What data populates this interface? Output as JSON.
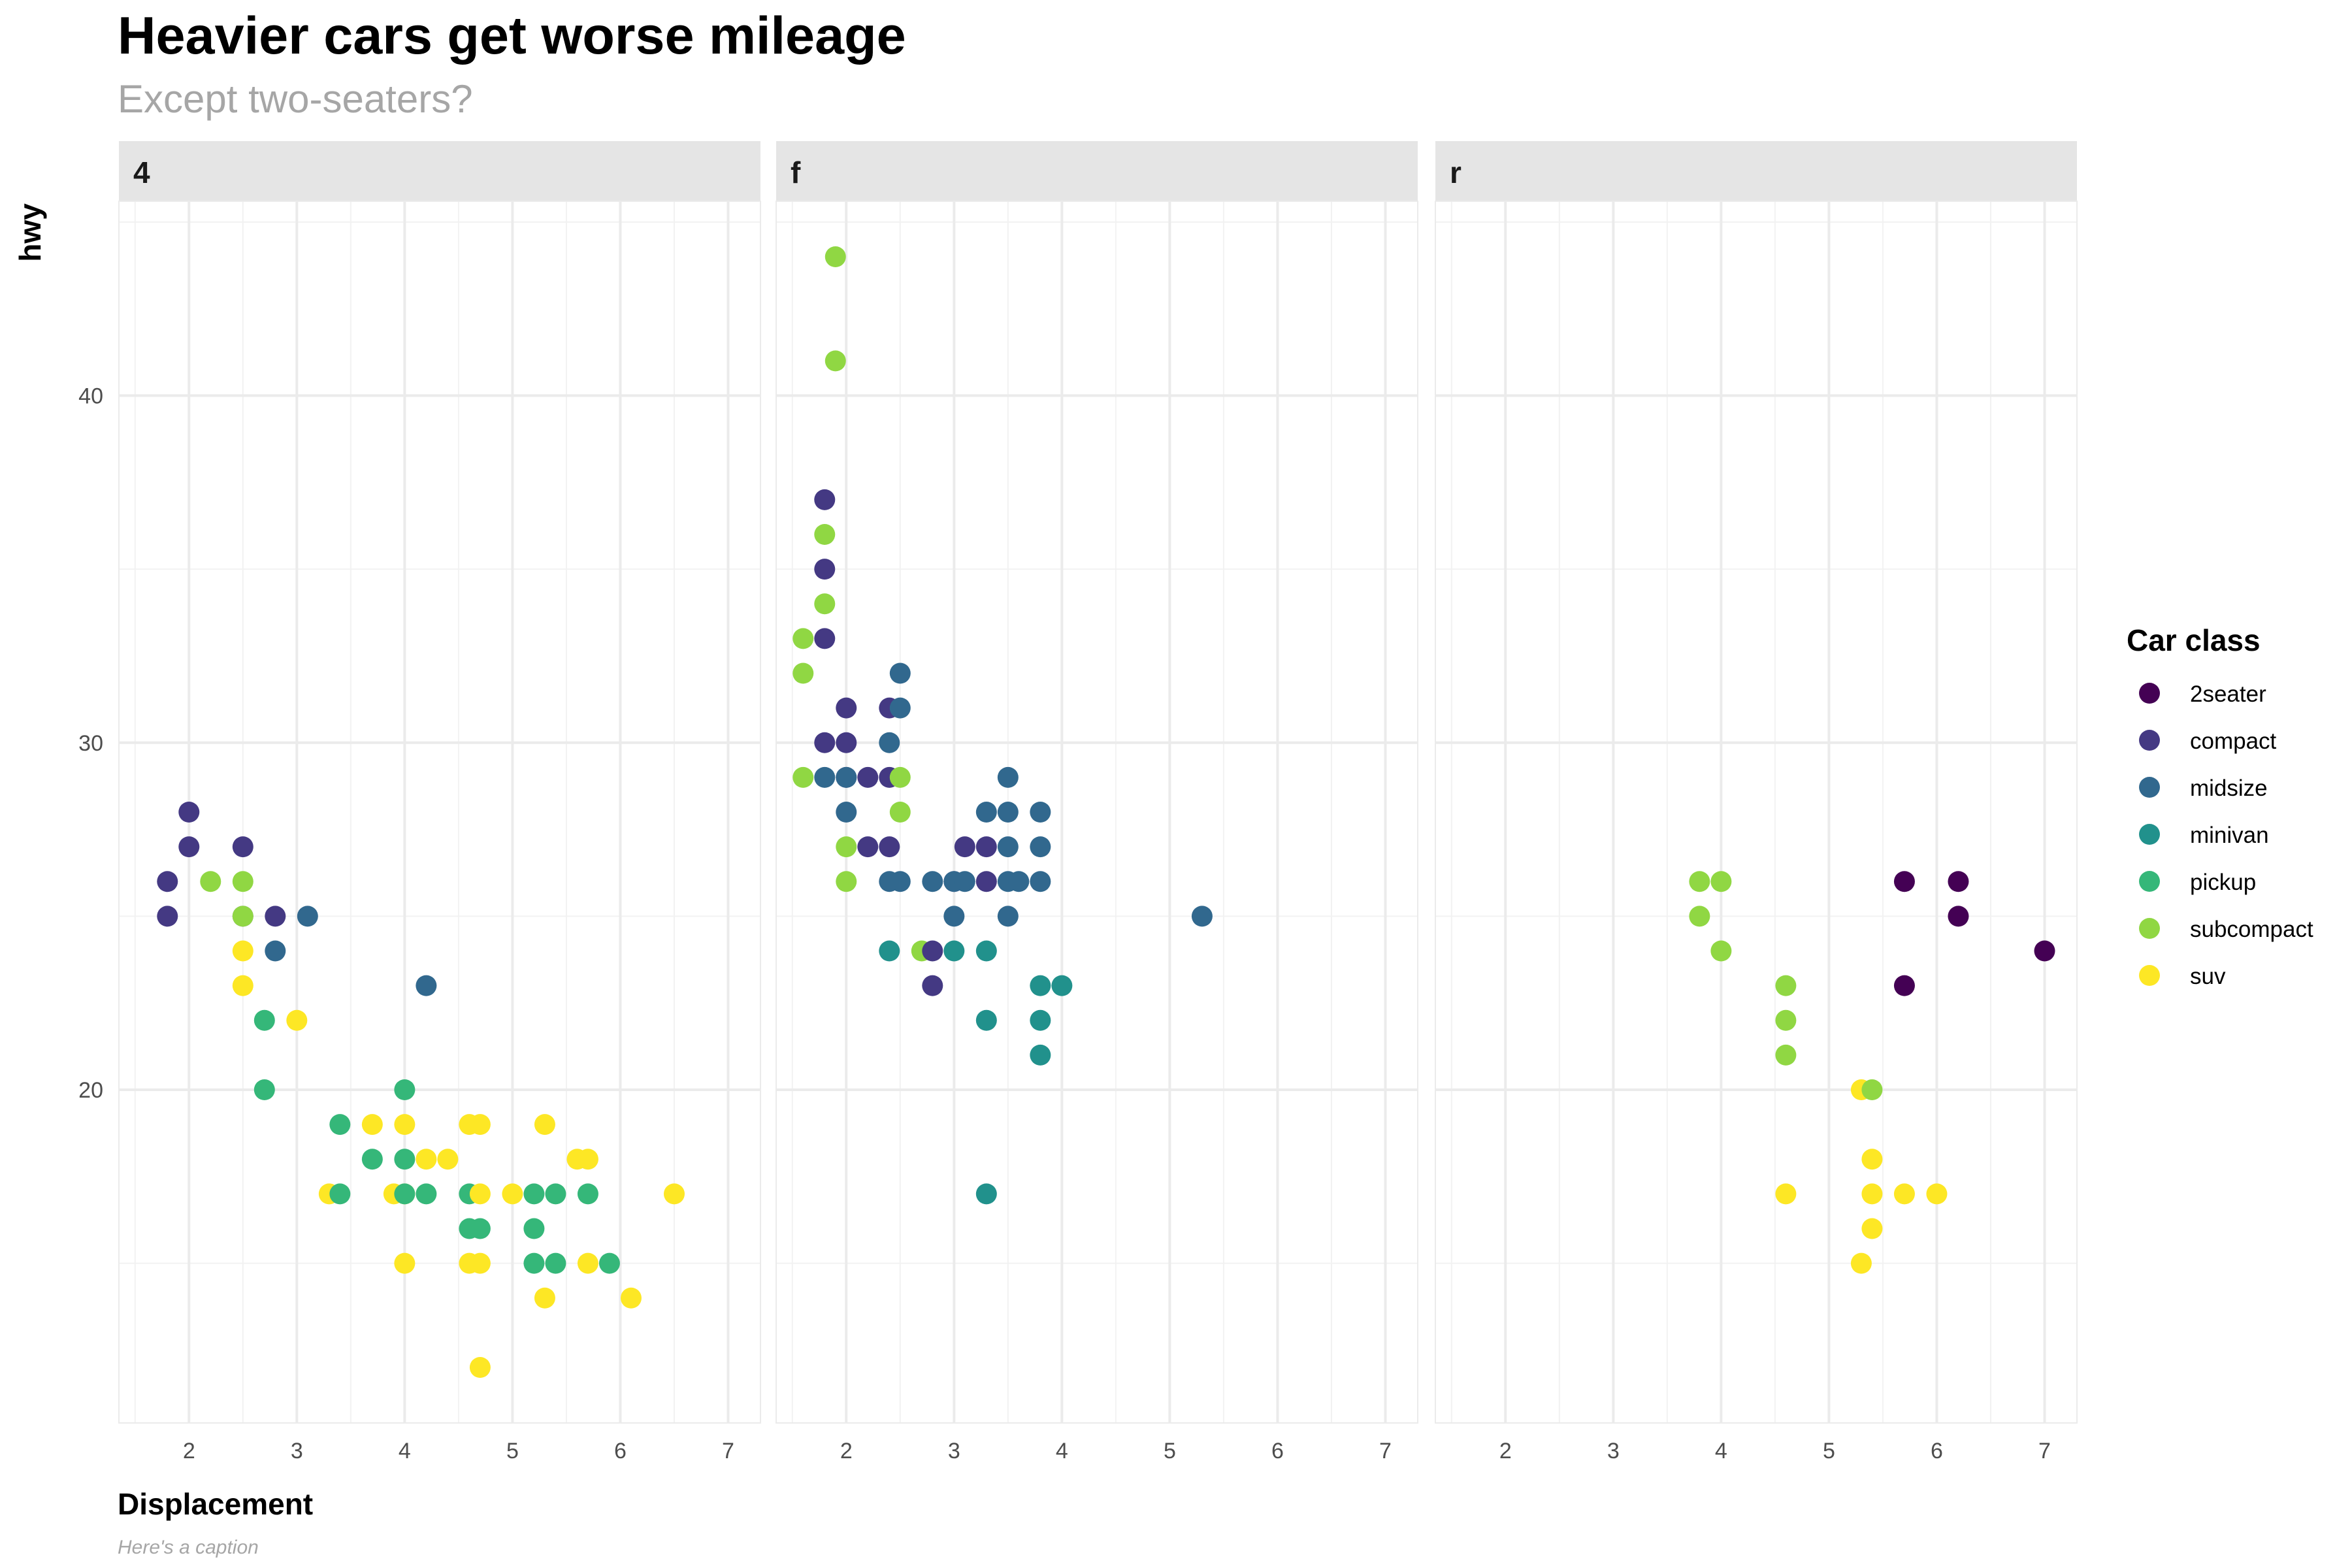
{
  "chart_data": {
    "type": "scatter",
    "title": "Heavier cars get worse mileage",
    "subtitle": "Except two-seaters?",
    "xlabel": "Displacement",
    "ylabel": "hwy",
    "caption": "Here's a caption",
    "xlim": [
      1.35,
      7.3
    ],
    "ylim": [
      10.4,
      45.6
    ],
    "x_ticks": [
      2,
      3,
      4,
      5,
      6,
      7
    ],
    "y_ticks": [
      20,
      30,
      40
    ],
    "grid": true,
    "legend": {
      "title": "Car class",
      "position": "right",
      "entries": [
        {
          "name": "2seater",
          "color": "#440154"
        },
        {
          "name": "compact",
          "color": "#443983"
        },
        {
          "name": "midsize",
          "color": "#31688e"
        },
        {
          "name": "minivan",
          "color": "#21918c"
        },
        {
          "name": "pickup",
          "color": "#35b779"
        },
        {
          "name": "subcompact",
          "color": "#90d743"
        },
        {
          "name": "suv",
          "color": "#fde725"
        }
      ]
    },
    "panels": [
      {
        "label": "4",
        "points": [
          [
            1.8,
            26,
            "compact"
          ],
          [
            1.8,
            25,
            "compact"
          ],
          [
            2.0,
            28,
            "compact"
          ],
          [
            2.0,
            27,
            "compact"
          ],
          [
            2.5,
            27,
            "compact"
          ],
          [
            2.5,
            25,
            "compact"
          ],
          [
            2.8,
            25,
            "compact"
          ],
          [
            2.2,
            26,
            "subcompact"
          ],
          [
            2.5,
            26,
            "subcompact"
          ],
          [
            2.5,
            25,
            "subcompact"
          ],
          [
            2.8,
            24,
            "midsize"
          ],
          [
            3.1,
            25,
            "midsize"
          ],
          [
            4.2,
            23,
            "midsize"
          ],
          [
            2.5,
            24,
            "suv"
          ],
          [
            2.5,
            23,
            "suv"
          ],
          [
            3.0,
            22,
            "suv"
          ],
          [
            2.7,
            22,
            "pickup"
          ],
          [
            2.7,
            20,
            "pickup"
          ],
          [
            3.3,
            17,
            "suv"
          ],
          [
            3.4,
            19,
            "pickup"
          ],
          [
            3.4,
            17,
            "pickup"
          ],
          [
            3.7,
            19,
            "suv"
          ],
          [
            3.7,
            18,
            "pickup"
          ],
          [
            3.9,
            17,
            "suv"
          ],
          [
            4.0,
            20,
            "pickup"
          ],
          [
            4.0,
            19,
            "suv"
          ],
          [
            4.0,
            18,
            "pickup"
          ],
          [
            4.0,
            17,
            "suv"
          ],
          [
            4.0,
            17,
            "pickup"
          ],
          [
            4.0,
            15,
            "suv"
          ],
          [
            4.2,
            18,
            "suv"
          ],
          [
            4.2,
            17,
            "pickup"
          ],
          [
            4.4,
            18,
            "suv"
          ],
          [
            4.6,
            19,
            "suv"
          ],
          [
            4.6,
            17,
            "pickup"
          ],
          [
            4.6,
            16,
            "pickup"
          ],
          [
            4.6,
            15,
            "suv"
          ],
          [
            4.7,
            19,
            "suv"
          ],
          [
            4.7,
            17,
            "suv"
          ],
          [
            4.7,
            16,
            "pickup"
          ],
          [
            4.7,
            15,
            "suv"
          ],
          [
            4.7,
            12,
            "suv"
          ],
          [
            5.0,
            17,
            "suv"
          ],
          [
            5.2,
            17,
            "pickup"
          ],
          [
            5.2,
            16,
            "pickup"
          ],
          [
            5.2,
            15,
            "pickup"
          ],
          [
            5.3,
            19,
            "suv"
          ],
          [
            5.3,
            14,
            "suv"
          ],
          [
            5.4,
            17,
            "pickup"
          ],
          [
            5.4,
            15,
            "pickup"
          ],
          [
            5.6,
            18,
            "suv"
          ],
          [
            5.7,
            18,
            "suv"
          ],
          [
            5.7,
            17,
            "pickup"
          ],
          [
            5.7,
            15,
            "suv"
          ],
          [
            5.9,
            15,
            "pickup"
          ],
          [
            6.1,
            14,
            "suv"
          ],
          [
            6.5,
            17,
            "suv"
          ]
        ]
      },
      {
        "label": "f",
        "points": [
          [
            1.6,
            33,
            "subcompact"
          ],
          [
            1.6,
            32,
            "subcompact"
          ],
          [
            1.6,
            29,
            "subcompact"
          ],
          [
            1.8,
            37,
            "compact"
          ],
          [
            1.8,
            35,
            "compact"
          ],
          [
            1.8,
            33,
            "compact"
          ],
          [
            1.8,
            30,
            "compact"
          ],
          [
            1.8,
            29,
            "midsize"
          ],
          [
            1.8,
            36,
            "subcompact"
          ],
          [
            1.8,
            34,
            "subcompact"
          ],
          [
            1.9,
            44,
            "subcompact"
          ],
          [
            1.9,
            41,
            "subcompact"
          ],
          [
            2.0,
            31,
            "compact"
          ],
          [
            2.0,
            30,
            "compact"
          ],
          [
            2.0,
            29,
            "compact"
          ],
          [
            2.0,
            29,
            "midsize"
          ],
          [
            2.0,
            28,
            "midsize"
          ],
          [
            2.0,
            27,
            "subcompact"
          ],
          [
            2.0,
            26,
            "subcompact"
          ],
          [
            2.2,
            29,
            "compact"
          ],
          [
            2.2,
            27,
            "compact"
          ],
          [
            2.4,
            31,
            "compact"
          ],
          [
            2.4,
            29,
            "compact"
          ],
          [
            2.4,
            27,
            "compact"
          ],
          [
            2.4,
            30,
            "midsize"
          ],
          [
            2.4,
            26,
            "midsize"
          ],
          [
            2.4,
            24,
            "minivan"
          ],
          [
            2.5,
            32,
            "midsize"
          ],
          [
            2.5,
            31,
            "midsize"
          ],
          [
            2.5,
            26,
            "midsize"
          ],
          [
            2.5,
            29,
            "subcompact"
          ],
          [
            2.5,
            28,
            "subcompact"
          ],
          [
            2.7,
            24,
            "subcompact"
          ],
          [
            2.8,
            26,
            "midsize"
          ],
          [
            2.8,
            24,
            "compact"
          ],
          [
            2.8,
            23,
            "compact"
          ],
          [
            3.0,
            26,
            "compact"
          ],
          [
            3.0,
            26,
            "midsize"
          ],
          [
            3.0,
            25,
            "midsize"
          ],
          [
            3.0,
            24,
            "minivan"
          ],
          [
            3.1,
            27,
            "compact"
          ],
          [
            3.1,
            26,
            "midsize"
          ],
          [
            3.3,
            28,
            "midsize"
          ],
          [
            3.3,
            27,
            "compact"
          ],
          [
            3.3,
            26,
            "compact"
          ],
          [
            3.3,
            24,
            "minivan"
          ],
          [
            3.3,
            22,
            "minivan"
          ],
          [
            3.3,
            17,
            "minivan"
          ],
          [
            3.5,
            29,
            "midsize"
          ],
          [
            3.5,
            28,
            "midsize"
          ],
          [
            3.5,
            27,
            "midsize"
          ],
          [
            3.5,
            26,
            "midsize"
          ],
          [
            3.5,
            25,
            "midsize"
          ],
          [
            3.6,
            26,
            "midsize"
          ],
          [
            3.8,
            28,
            "midsize"
          ],
          [
            3.8,
            27,
            "midsize"
          ],
          [
            3.8,
            26,
            "midsize"
          ],
          [
            3.8,
            23,
            "minivan"
          ],
          [
            3.8,
            22,
            "minivan"
          ],
          [
            3.8,
            21,
            "minivan"
          ],
          [
            4.0,
            23,
            "minivan"
          ],
          [
            5.3,
            25,
            "midsize"
          ]
        ]
      },
      {
        "label": "r",
        "points": [
          [
            3.8,
            26,
            "subcompact"
          ],
          [
            3.8,
            25,
            "subcompact"
          ],
          [
            4.0,
            26,
            "subcompact"
          ],
          [
            4.0,
            24,
            "subcompact"
          ],
          [
            4.6,
            23,
            "subcompact"
          ],
          [
            4.6,
            22,
            "subcompact"
          ],
          [
            4.6,
            21,
            "subcompact"
          ],
          [
            4.6,
            17,
            "suv"
          ],
          [
            5.3,
            20,
            "suv"
          ],
          [
            5.3,
            15,
            "suv"
          ],
          [
            5.4,
            20,
            "subcompact"
          ],
          [
            5.4,
            18,
            "suv"
          ],
          [
            5.4,
            17,
            "suv"
          ],
          [
            5.4,
            16,
            "suv"
          ],
          [
            5.7,
            26,
            "2seater"
          ],
          [
            5.7,
            23,
            "2seater"
          ],
          [
            5.7,
            17,
            "suv"
          ],
          [
            6.0,
            17,
            "suv"
          ],
          [
            6.2,
            26,
            "2seater"
          ],
          [
            6.2,
            25,
            "2seater"
          ],
          [
            7.0,
            24,
            "2seater"
          ]
        ]
      }
    ]
  }
}
